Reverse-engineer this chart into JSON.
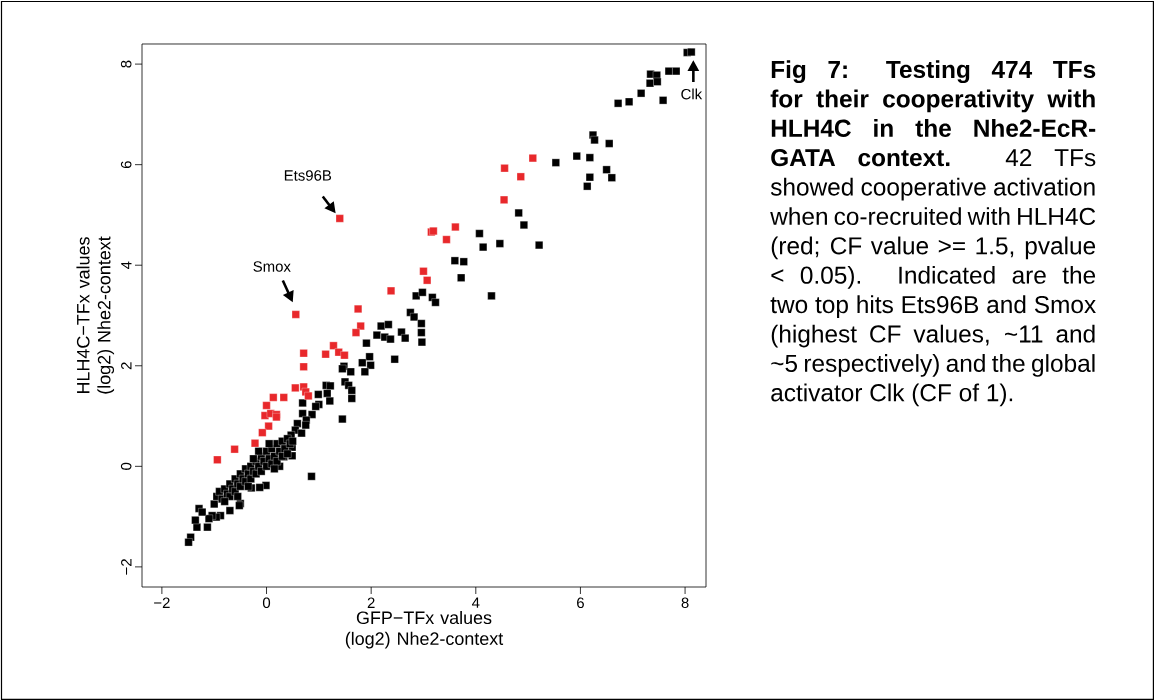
{
  "chart_data": {
    "type": "scatter",
    "xlabel": "GFP−TFx values (log2) Nhe2-context",
    "ylabel": "HLH4C−TFx values (log2) Nhe2-context",
    "xlim": [
      -2.38,
      8.4
    ],
    "ylim": [
      -2.4,
      8.4
    ],
    "xticks": [
      {
        "value": -2,
        "label": "−2"
      },
      0,
      2,
      4,
      6,
      8
    ],
    "yticks": [
      {
        "value": -2,
        "label": "−2"
      },
      0,
      2,
      4,
      6,
      8
    ],
    "grid": false,
    "marker": "square",
    "series": [
      {
        "color": "#000000",
        "x": [
          8.04,
          8.12,
          7.34,
          7.46,
          7.33,
          7.47,
          7.69,
          7.83,
          7.58,
          7.16,
          6.93,
          6.72,
          6.24,
          6.27,
          6.55,
          5.93,
          6.18,
          5.53,
          6.5,
          6.6,
          6.18,
          6.13,
          4.82,
          4.92,
          4.07,
          4.14,
          4.46,
          5.21,
          3.6,
          3.77,
          3.72,
          4.3,
          2.86,
          2.98,
          3.17,
          3.23,
          2.75,
          2.82,
          2.96,
          2.96,
          2.97,
          2.19,
          2.33,
          2.11,
          2.26,
          2.37,
          2.58,
          2.65,
          1.91,
          1.97,
          1.83,
          1.99,
          2.45,
          1.48,
          1.45,
          1.61,
          1.5,
          1.57,
          1.63,
          1.63,
          1.88,
          1.14,
          1.22,
          1.16,
          1.21,
          0.99,
          1.0,
          0.94,
          0.69,
          0.69,
          0.87,
          0.76,
          0.59,
          1.45,
          0.55,
          0.67,
          0.47,
          0.75,
          0.49,
          0.49,
          0.33,
          0.25,
          0.86,
          -0.01,
          -0.13,
          -0.29,
          -0.5,
          -0.52,
          -0.7,
          -0.88,
          -0.96,
          -1.04,
          -1.1,
          -1.13,
          -1.33,
          -1.36,
          -1.29,
          -1.23,
          -1.45,
          -1.49,
          -1.0,
          -0.95,
          -0.9,
          -0.85,
          -0.8,
          -0.75,
          -0.7,
          -0.7,
          -0.65,
          -0.6,
          -0.6,
          -0.55,
          -0.5,
          -0.5,
          -0.45,
          -0.4,
          -0.4,
          -0.35,
          -0.3,
          -0.3,
          -0.25,
          -0.2,
          -0.2,
          -0.15,
          -0.1,
          -0.1,
          -0.05,
          0.0,
          0.0,
          0.05,
          0.1,
          0.1,
          0.15,
          0.2,
          0.2,
          0.25,
          0.3,
          0.3,
          0.35,
          0.4,
          0.4,
          0.45,
          -0.15,
          -0.25,
          0.05,
          -0.35,
          0.15,
          -0.55,
          -0.8,
          0.5
        ],
        "values": [
          8.23,
          8.24,
          7.8,
          7.78,
          7.62,
          7.65,
          7.86,
          7.86,
          7.28,
          7.42,
          7.25,
          7.22,
          6.59,
          6.49,
          6.42,
          6.17,
          6.14,
          6.04,
          5.9,
          5.74,
          5.75,
          5.57,
          5.04,
          4.8,
          4.63,
          4.36,
          4.43,
          4.4,
          4.09,
          4.07,
          3.75,
          3.39,
          3.39,
          3.46,
          3.36,
          3.26,
          3.06,
          2.97,
          2.84,
          2.66,
          2.47,
          2.79,
          2.82,
          2.61,
          2.57,
          2.53,
          2.67,
          2.55,
          2.45,
          2.18,
          2.06,
          2.01,
          2.13,
          1.99,
          1.94,
          1.88,
          1.68,
          1.61,
          1.51,
          1.35,
          1.88,
          1.61,
          1.6,
          1.45,
          1.3,
          1.43,
          1.23,
          1.19,
          1.26,
          1.05,
          1.03,
          0.92,
          0.85,
          0.94,
          0.72,
          0.66,
          0.62,
          0.82,
          0.38,
          0.21,
          0.19,
          0.0,
          -0.2,
          -0.38,
          -0.42,
          -0.43,
          -0.74,
          -0.78,
          -0.88,
          -0.98,
          -1.01,
          -0.98,
          -1.04,
          -1.21,
          -1.21,
          -1.07,
          -0.84,
          -0.91,
          -1.41,
          -1.51,
          -0.75,
          -0.6,
          -0.5,
          -0.65,
          -0.45,
          -0.55,
          -0.35,
          -0.6,
          -0.45,
          -0.25,
          -0.5,
          -0.35,
          -0.15,
          -0.4,
          -0.25,
          -0.05,
          -0.3,
          -0.15,
          0.0,
          -0.25,
          -0.1,
          0.1,
          -0.15,
          0.0,
          0.2,
          -0.1,
          0.1,
          0.3,
          0.0,
          0.15,
          0.35,
          0.05,
          0.2,
          0.45,
          0.1,
          0.3,
          0.5,
          0.2,
          0.35,
          0.55,
          0.25,
          0.45,
          0.3,
          0.15,
          0.45,
          -0.4,
          -0.05,
          -0.6,
          -0.7,
          0.5
        ]
      },
      {
        "color": "#e8282b",
        "x": [
          5.09,
          4.55,
          4.86,
          4.54,
          1.4,
          3.15,
          3.19,
          3.61,
          3.44,
          3.0,
          3.07,
          2.38,
          1.75,
          1.8,
          1.71,
          1.28,
          1.38,
          1.49,
          1.13,
          0.71,
          0.71,
          0.56,
          0.55,
          0.71,
          0.75,
          0.8,
          0.13,
          0.33,
          0.0,
          -0.03,
          0.08,
          0.19,
          0.04,
          0.19,
          -0.08,
          -0.22,
          -0.61,
          -0.94
        ],
        "values": [
          6.13,
          5.93,
          5.76,
          5.3,
          4.93,
          4.66,
          4.68,
          4.76,
          4.51,
          3.88,
          3.7,
          3.49,
          3.13,
          2.79,
          2.66,
          2.4,
          2.27,
          2.21,
          2.23,
          2.25,
          1.98,
          3.02,
          1.56,
          1.58,
          1.48,
          1.4,
          1.37,
          1.37,
          1.21,
          1.01,
          1.05,
          1.03,
          0.8,
          0.98,
          0.67,
          0.46,
          0.34,
          0.13
        ]
      }
    ],
    "annotations": [
      "**Fig 7: Testing 474 TFs for their cooperativity with HLH4C in the Nhe2-EcR-GATA context.** 42 TFs showed cooperative activation when co-recruited with HLH4C (red; CF value >= 1.5, pvalue < 0.05). Indicated are the two top hits Ets96B and Smox (highest CF values, ~11 and ~5 respectively) and the global activator Clk (CF of 1).",
      {
        "text": "Ets96B",
        "x": 1.4,
        "y": 4.93
      },
      {
        "text": "Smox",
        "x": 0.56,
        "y": 3.02
      },
      {
        "text": "Clk",
        "x": 8.12,
        "y": 8.24
      }
    ]
  }
}
